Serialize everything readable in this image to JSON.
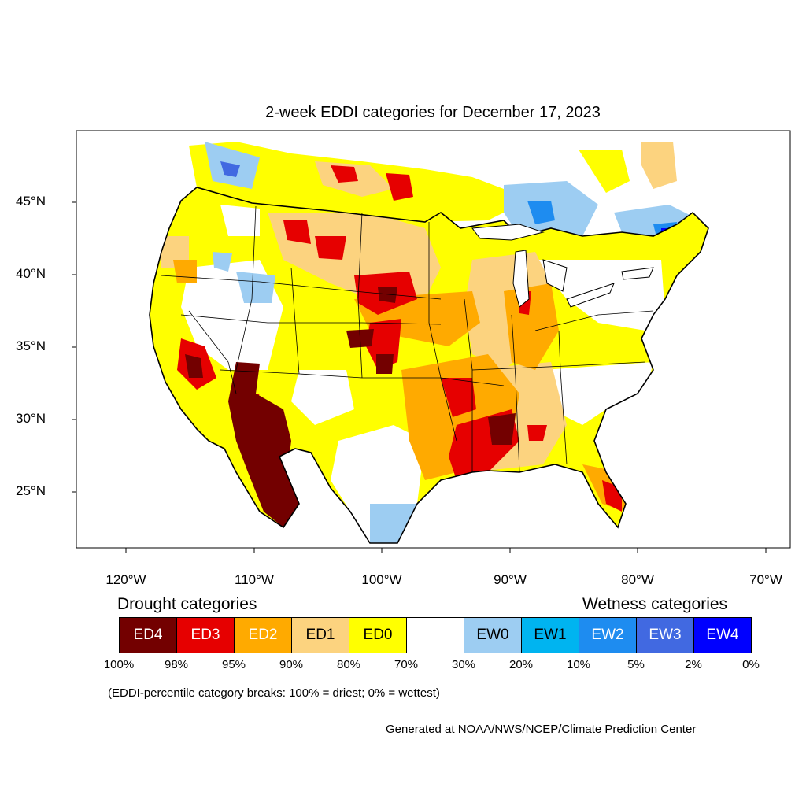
{
  "title": "2-week EDDI categories for December 17, 2023",
  "lat_labels": [
    "45°N",
    "40°N",
    "35°N",
    "30°N",
    "25°N"
  ],
  "lon_labels": [
    "120°W",
    "110°W",
    "100°W",
    "90°W",
    "80°W",
    "70°W"
  ],
  "drought_heading": "Drought categories",
  "wetness_heading": "Wetness categories",
  "categories": [
    {
      "label": "ED4",
      "color": "#730000",
      "text_color": "#ffffff"
    },
    {
      "label": "ED3",
      "color": "#e60000",
      "text_color": "#ffffff"
    },
    {
      "label": "ED2",
      "color": "#ffaa00",
      "text_color": "#ffffff"
    },
    {
      "label": "ED1",
      "color": "#fcd37f",
      "text_color": "#000000"
    },
    {
      "label": "ED0",
      "color": "#ffff00",
      "text_color": "#000000"
    },
    {
      "label": "",
      "color": "#ffffff",
      "text_color": "#000000"
    },
    {
      "label": "EW0",
      "color": "#9dcdf2",
      "text_color": "#000000"
    },
    {
      "label": "EW1",
      "color": "#00b4f0",
      "text_color": "#000000"
    },
    {
      "label": "EW2",
      "color": "#1e8cf0",
      "text_color": "#ffffff"
    },
    {
      "label": "EW3",
      "color": "#4169e1",
      "text_color": "#ffffff"
    },
    {
      "label": "EW4",
      "color": "#0000ff",
      "text_color": "#ffffff"
    }
  ],
  "percent_breaks": [
    "100%",
    "98%",
    "95%",
    "90%",
    "80%",
    "70%",
    "30%",
    "20%",
    "10%",
    "5%",
    "2%",
    "0%"
  ],
  "note": "(EDDI-percentile category breaks: 100% = driest; 0% = wettest)",
  "credit": "Generated at NOAA/NWS/NCEP/Climate Prediction Center"
}
